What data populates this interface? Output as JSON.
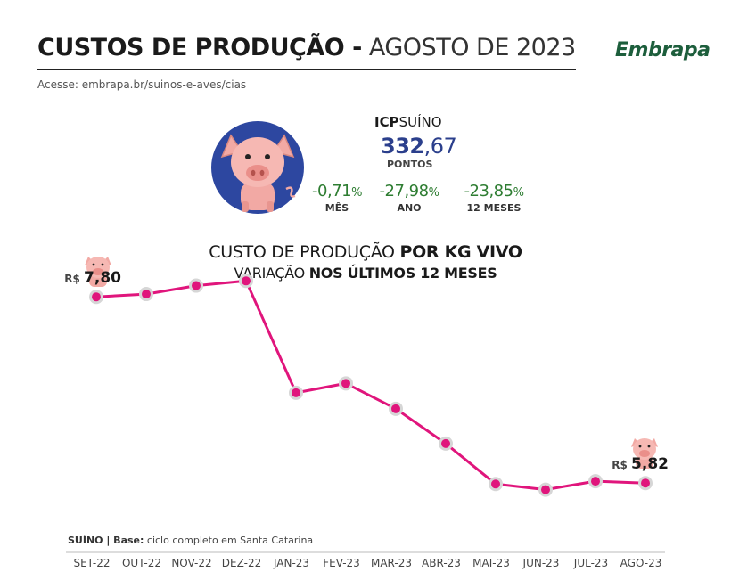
{
  "header": {
    "title_bold": "CUSTOS DE PRODUÇÃO -",
    "title_light": "AGOSTO DE 2023",
    "source": "Acesse: embrapa.br/suinos-e-aves/cias",
    "logo": "Embrapa"
  },
  "icp": {
    "label_bold": "ICP",
    "label_rest": "SUÍNO",
    "value_int": "332",
    "value_dec": ",67",
    "unit": "PONTOS"
  },
  "variations": [
    {
      "value": "-0,71",
      "suffix": "%",
      "label": "MÊS"
    },
    {
      "value": "-27,98",
      "suffix": "%",
      "label": "ANO"
    },
    {
      "value": "-23,85",
      "suffix": "%",
      "label": "12 MESES"
    }
  ],
  "chart_titles": {
    "title_light": "CUSTO DE PRODUÇÃO ",
    "title_bold": "POR KG VIVO",
    "subtitle_light": "VARIAÇÃO ",
    "subtitle_bold": "NOS ÚLTIMOS 12 MESES"
  },
  "footnote": {
    "bold": "SUÍNO | Base:",
    "rest": " ciclo completo em ",
    "place": "Santa Catarina"
  },
  "colors": {
    "line": "#e0157c",
    "marker_ring": "#d6d6d6",
    "icp_value": "#2b3f8c",
    "variation": "#2e7d32",
    "pig_disc": "#2d47a0",
    "pig": "#f2a9a4"
  },
  "chart_data": {
    "type": "line",
    "title": "CUSTO DE PRODUÇÃO POR KG VIVO",
    "subtitle": "VARIAÇÃO NOS ÚLTIMOS 12 MESES",
    "categories": [
      "SET-22",
      "OUT-22",
      "NOV-22",
      "DEZ-22",
      "JAN-23",
      "FEV-23",
      "MAR-23",
      "ABR-23",
      "MAI-23",
      "JUN-23",
      "JUL-23",
      "AGO-23"
    ],
    "series": [
      {
        "values": [
          7.8,
          7.83,
          7.92,
          7.97,
          6.78,
          6.88,
          6.61,
          6.24,
          5.81,
          5.75,
          5.84,
          5.82
        ]
      }
    ],
    "labels": [
      {
        "index": 0,
        "currency": "R$",
        "value": "7,80"
      },
      {
        "index": 11,
        "currency": "R$",
        "value": "5,82"
      }
    ],
    "ylim": [
      5.5,
      8.2
    ],
    "grid": false,
    "legend": "none"
  }
}
